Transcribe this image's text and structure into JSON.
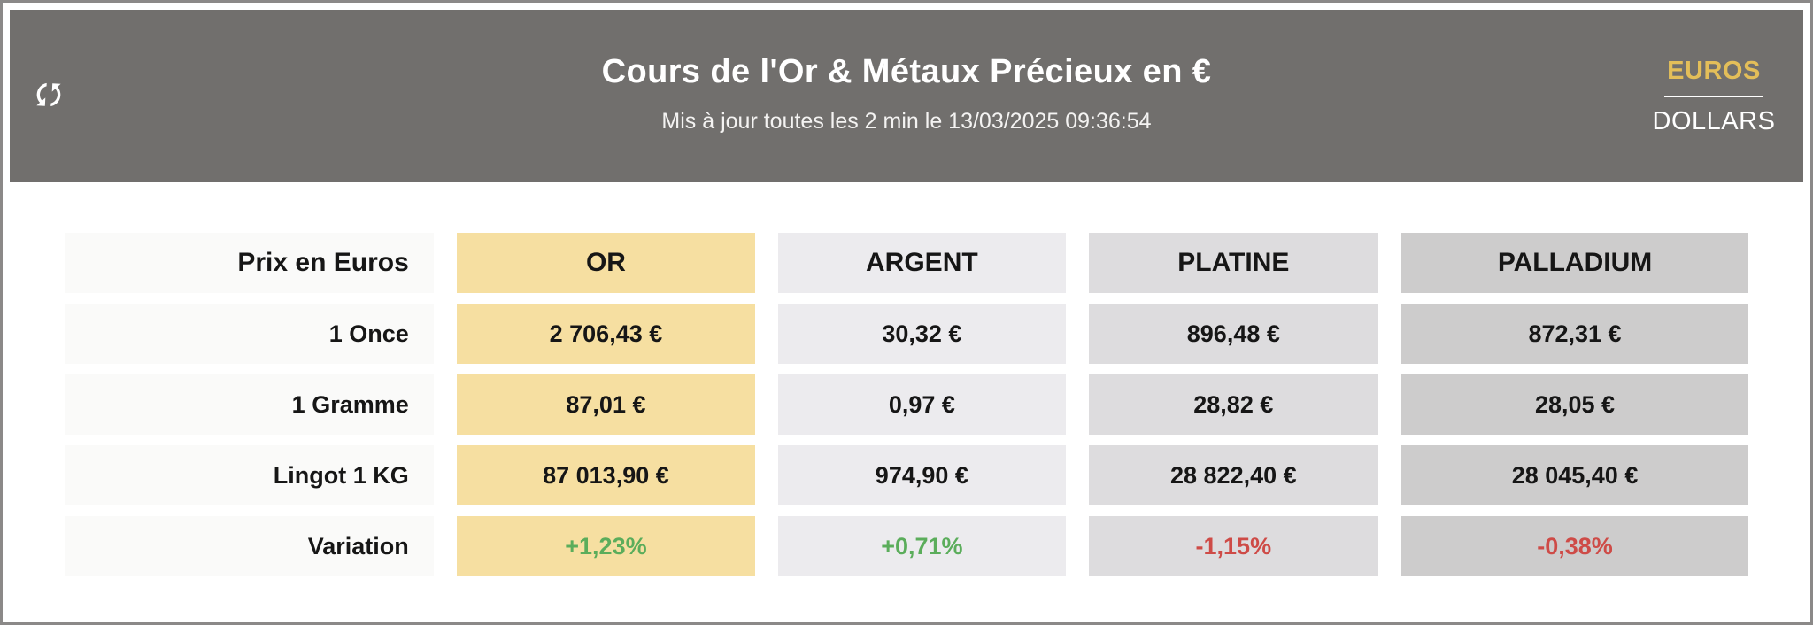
{
  "header": {
    "title": "Cours de l'Or & Métaux Précieux en €",
    "subtitle": "Mis à jour toutes les 2 min le 13/03/2025 09:36:54",
    "refresh_icon": "refresh-sync-arrows",
    "currency_toggle": {
      "selected": "EUROS",
      "alternate": "DOLLARS"
    }
  },
  "colors": {
    "header_band": "#716F6D",
    "accent_gold_text": "#E3BE59",
    "frame_border": "#8B8988",
    "label_column": "#FAFAF9",
    "positive": "#5BAD5B",
    "negative": "#CE4B47"
  },
  "table": {
    "corner_label": "Prix en Euros",
    "columns": [
      {
        "id": "or",
        "label": "OR",
        "bg": "#F6DFA1"
      },
      {
        "id": "argent",
        "label": "ARGENT",
        "bg": "#ECEBEE"
      },
      {
        "id": "platine",
        "label": "PLATINE",
        "bg": "#DDDCDE"
      },
      {
        "id": "palladium",
        "label": "PALLADIUM",
        "bg": "#CDCCCC"
      }
    ],
    "rows": [
      {
        "label": "1 Once",
        "values": [
          "2 706,43 €",
          "30,32 €",
          "896,48 €",
          "872,31 €"
        ]
      },
      {
        "label": "1 Gramme",
        "values": [
          "87,01 €",
          "0,97 €",
          "28,82 €",
          "28,05 €"
        ]
      },
      {
        "label": "Lingot 1 KG",
        "values": [
          "87 013,90 €",
          "974,90 €",
          "28 822,40 €",
          "28 045,40 €"
        ]
      },
      {
        "label": "Variation",
        "values": [
          "+1,23%",
          "+0,71%",
          "-1,15%",
          "-0,38%"
        ],
        "variation": true,
        "trend": [
          "positive",
          "positive",
          "negative",
          "negative"
        ]
      }
    ]
  }
}
